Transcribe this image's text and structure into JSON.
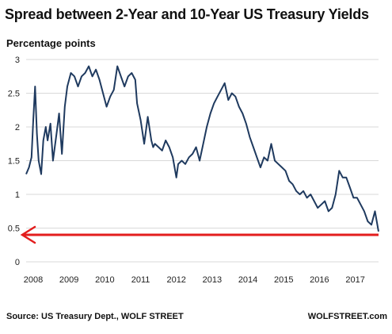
{
  "title": "Spread between 2-Year and 10-Year US Treasury Yields",
  "ylabel": "Percentage points",
  "source": "Source: US Treasury Dept., WOLF STREET",
  "credit": "WOLFSTREET.com",
  "colors": {
    "line": "#1f3a5f",
    "marker": "#e31d1d",
    "grid": "#d9d9d9",
    "text": "#222222"
  },
  "chart_data": {
    "type": "line",
    "title": "Spread between 2-Year and 10-Year US Treasury Yields",
    "ylabel": "Percentage points",
    "xlabel": "",
    "xlim": [
      2008.0,
      2017.85
    ],
    "ylim": [
      0,
      3
    ],
    "yticks": [
      0,
      0.5,
      1,
      1.5,
      2,
      2.5,
      3
    ],
    "xticks": [
      2008,
      2009,
      2010,
      2011,
      2012,
      2013,
      2014,
      2015,
      2016,
      2017
    ],
    "grid": "horizontal",
    "reference_line": {
      "y": 0.4,
      "color": "#e31d1d",
      "arrow": "left"
    },
    "series": [
      {
        "x": [
          2008.0,
          2008.08,
          2008.15,
          2008.2,
          2008.25,
          2008.3,
          2008.35,
          2008.42,
          2008.48,
          2008.55,
          2008.6,
          2008.68,
          2008.75,
          2008.85,
          2008.92,
          2009.0,
          2009.08,
          2009.15,
          2009.25,
          2009.35,
          2009.45,
          2009.55,
          2009.65,
          2009.75,
          2009.85,
          2009.95,
          2010.05,
          2010.15,
          2010.25,
          2010.35,
          2010.45,
          2010.55,
          2010.65,
          2010.75,
          2010.85,
          2010.95,
          2011.05,
          2011.1,
          2011.2,
          2011.3,
          2011.4,
          2011.5,
          2011.55,
          2011.6,
          2011.7,
          2011.8,
          2011.9,
          2012.0,
          2012.1,
          2012.2,
          2012.25,
          2012.35,
          2012.45,
          2012.55,
          2012.65,
          2012.75,
          2012.85,
          2012.95,
          2013.05,
          2013.15,
          2013.25,
          2013.35,
          2013.45,
          2013.55,
          2013.65,
          2013.75,
          2013.85,
          2013.95,
          2014.05,
          2014.15,
          2014.25,
          2014.35,
          2014.45,
          2014.55,
          2014.65,
          2014.75,
          2014.85,
          2014.95,
          2015.05,
          2015.15,
          2015.25,
          2015.35,
          2015.45,
          2015.55,
          2015.65,
          2015.75,
          2015.85,
          2015.95,
          2016.05,
          2016.15,
          2016.25,
          2016.35,
          2016.45,
          2016.55,
          2016.65,
          2016.75,
          2016.85,
          2016.95,
          2017.05,
          2017.15,
          2017.25,
          2017.35,
          2017.45,
          2017.55,
          2017.65,
          2017.75,
          2017.85
        ],
        "y": [
          1.3,
          1.4,
          1.55,
          2.1,
          2.6,
          1.9,
          1.5,
          1.3,
          1.8,
          2.0,
          1.8,
          2.05,
          1.5,
          1.9,
          2.2,
          1.6,
          2.3,
          2.6,
          2.8,
          2.75,
          2.6,
          2.75,
          2.8,
          2.9,
          2.75,
          2.85,
          2.7,
          2.5,
          2.3,
          2.45,
          2.55,
          2.9,
          2.75,
          2.6,
          2.75,
          2.8,
          2.7,
          2.35,
          2.1,
          1.75,
          2.15,
          1.8,
          1.7,
          1.75,
          1.7,
          1.65,
          1.8,
          1.7,
          1.55,
          1.25,
          1.45,
          1.5,
          1.45,
          1.55,
          1.6,
          1.7,
          1.5,
          1.75,
          2.0,
          2.2,
          2.35,
          2.45,
          2.55,
          2.65,
          2.4,
          2.5,
          2.45,
          2.3,
          2.2,
          2.05,
          1.85,
          1.7,
          1.55,
          1.4,
          1.55,
          1.5,
          1.75,
          1.5,
          1.45,
          1.4,
          1.35,
          1.2,
          1.15,
          1.05,
          1.0,
          1.05,
          0.95,
          1.0,
          0.9,
          0.8,
          0.85,
          0.9,
          0.75,
          0.8,
          1.0,
          1.35,
          1.25,
          1.25,
          1.1,
          0.95,
          0.95,
          0.85,
          0.75,
          0.6,
          0.55,
          0.75,
          0.45
        ]
      }
    ]
  }
}
